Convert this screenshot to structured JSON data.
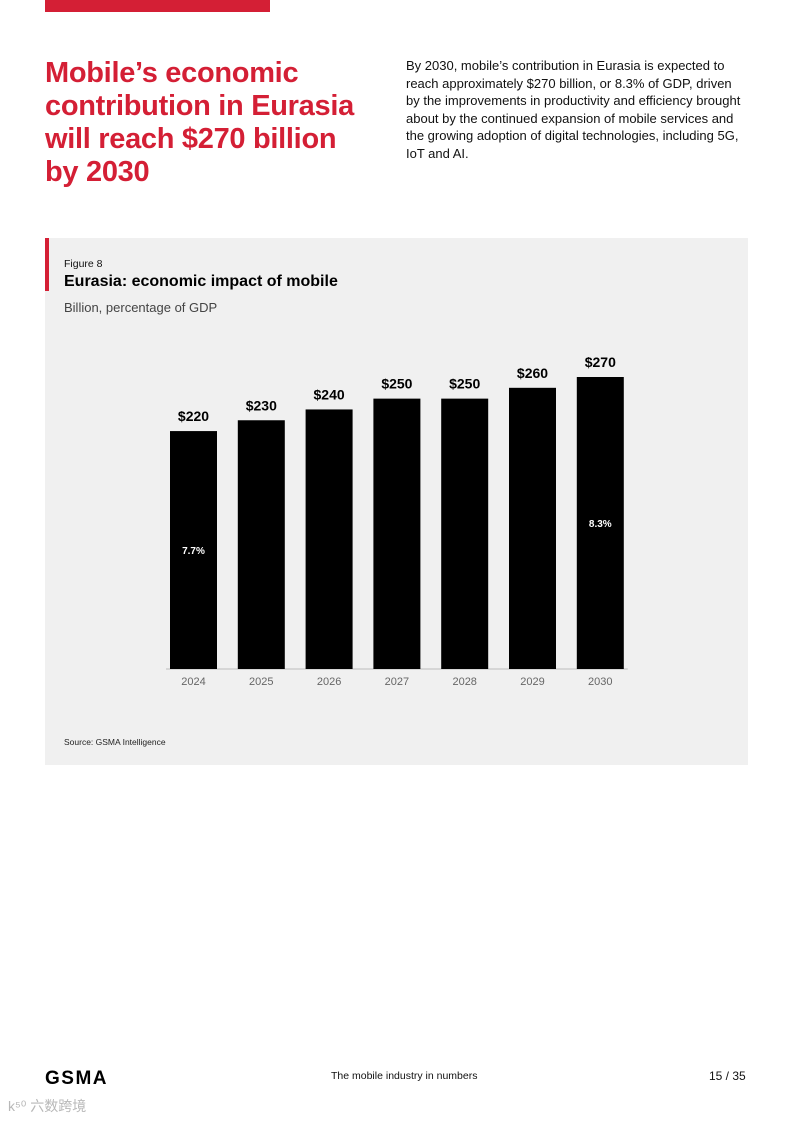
{
  "page": {
    "headline": "Mobile’s economic contribution in Eurasia will reach $270 billion by 2030",
    "intro": "By 2030, mobile’s contribution in Eurasia is expected to reach approximately $270 billion, or 8.3% of GDP, driven by the improvements in productivity and efficiency brought about by the continued expansion of mobile services and the growing adoption of digital technologies, including 5G, IoT and AI."
  },
  "figure": {
    "label": "Figure 8",
    "source": "Source: GSMA Intelligence"
  },
  "chart_data": {
    "type": "bar",
    "title": "Eurasia: economic impact of mobile",
    "subtitle": "Billion, percentage of GDP",
    "xlabel": "",
    "ylabel": "",
    "ylim": [
      0,
      270
    ],
    "grid": false,
    "categories": [
      "2024",
      "2025",
      "2026",
      "2027",
      "2028",
      "2029",
      "2030"
    ],
    "values": [
      220,
      230,
      240,
      250,
      250,
      260,
      270
    ],
    "value_labels": [
      "$220",
      "$230",
      "$240",
      "$250",
      "$250",
      "$260",
      "$270"
    ],
    "inner_labels": [
      "7.7%",
      "",
      "",
      "",
      "",
      "",
      "8.3%"
    ],
    "bar_color": "#000000",
    "inner_label_color": "#ffffff",
    "tick_label_color": "#666666"
  },
  "footer": {
    "logo": "GSMA",
    "center": "The mobile industry in numbers",
    "page": "15 / 35"
  },
  "watermark": "k⁵⁰ 六数跨境",
  "colors": {
    "accent": "#d41f35",
    "panel_bg": "#f0f0f0"
  }
}
